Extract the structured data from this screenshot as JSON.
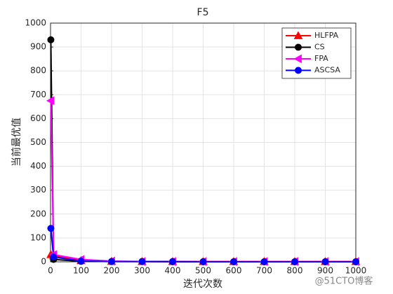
{
  "chart_data": {
    "type": "line",
    "title": "F5",
    "xlabel": "迭代次数",
    "ylabel": "当前最优值",
    "x": [
      1,
      10,
      100,
      200,
      300,
      400,
      500,
      600,
      700,
      800,
      900,
      1000
    ],
    "series": [
      {
        "name": "HLFPA",
        "color": "#ff0000",
        "marker": "triangle-up",
        "values": [
          30,
          25,
          5,
          2,
          1,
          1,
          1,
          1,
          1,
          1,
          1,
          1
        ]
      },
      {
        "name": "CS",
        "color": "#000000",
        "marker": "circle",
        "values": [
          930,
          10,
          2,
          1,
          1,
          0,
          0,
          0,
          0,
          0,
          0,
          0
        ]
      },
      {
        "name": "FPA",
        "color": "#ff00ff",
        "marker": "triangle-left",
        "values": [
          675,
          30,
          10,
          3,
          1,
          1,
          1,
          1,
          1,
          1,
          1,
          1
        ]
      },
      {
        "name": "ASCSA",
        "color": "#0000ff",
        "marker": "circle",
        "values": [
          140,
          20,
          3,
          1,
          1,
          1,
          0,
          0,
          0,
          0,
          0,
          0
        ]
      }
    ],
    "xlim": [
      0,
      1000
    ],
    "xticks": [
      0,
      100,
      200,
      300,
      400,
      500,
      600,
      700,
      800,
      900,
      1000
    ],
    "ylim": [
      0,
      1000
    ],
    "yticks": [
      0,
      100,
      200,
      300,
      400,
      500,
      600,
      700,
      800,
      900,
      1000
    ],
    "grid": true,
    "legend_position": "upper-right",
    "watermark": "@51CTO博客"
  }
}
